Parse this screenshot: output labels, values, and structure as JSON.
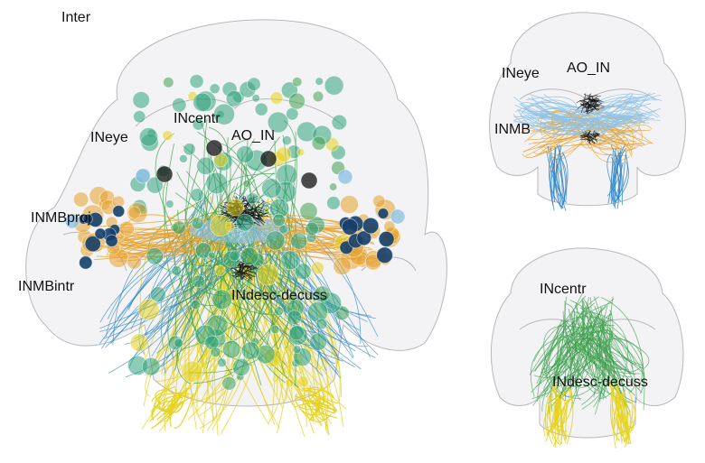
{
  "main_panel": {
    "title": "Inter",
    "labels": {
      "inmbproj": "INMBproj",
      "inmbintr": "INMBintr",
      "ineye": "INeye",
      "incentr": "INcentr",
      "ao_in": "AO_IN",
      "indesc": "INdesc-decuss"
    }
  },
  "top_right_panel": {
    "labels": {
      "ineye": "INeye",
      "ao_in": "AO_IN",
      "inmb": "INMB"
    }
  },
  "bottom_right_panel": {
    "labels": {
      "incentr": "INcentr",
      "indesc": "INdesc-decuss"
    }
  },
  "colors": {
    "shell_fill": "#e9e9ec",
    "shell_stroke": "#b8b8bd",
    "teal": "#2fa37a",
    "green": "#3f9f4f",
    "yellow": "#e6d21c",
    "orange": "#e5a02a",
    "blue": "#2f86c4",
    "light_blue": "#8fc2e6",
    "dark_blue": "#143f6a",
    "black": "#111111"
  }
}
